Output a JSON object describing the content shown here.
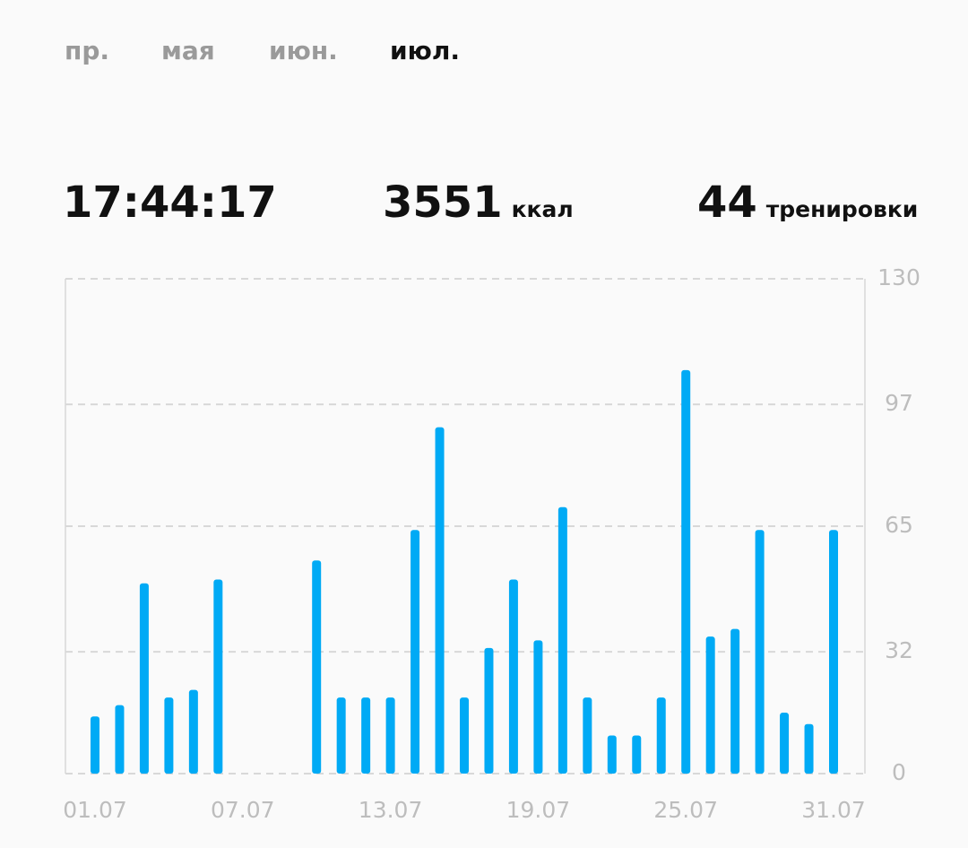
{
  "tabs": [
    "пр.",
    "мая",
    "июн.",
    "июл."
  ],
  "stats": {
    "duration": "17:44:17",
    "calories": "3551",
    "calories_unit": "ккал",
    "workouts": "44",
    "workouts_unit": "тренировки"
  },
  "chart_data": {
    "type": "bar",
    "categories": [
      "01.07",
      null,
      null,
      null,
      null,
      null,
      "07.07",
      null,
      null,
      null,
      null,
      null,
      "13.07",
      null,
      null,
      null,
      null,
      null,
      "19.07",
      null,
      null,
      null,
      null,
      null,
      "25.07",
      null,
      null,
      null,
      null,
      null,
      "31.07"
    ],
    "values": [
      15,
      18,
      50,
      20,
      22,
      51,
      0,
      0,
      0,
      56,
      20,
      20,
      20,
      64,
      91,
      20,
      33,
      51,
      35,
      70,
      20,
      10,
      10,
      20,
      106,
      36,
      38,
      64,
      16,
      13,
      64
    ],
    "color": "#00aaf5",
    "ylim": [
      0,
      130
    ],
    "yticks": [
      0,
      32,
      65,
      97,
      130
    ],
    "grid": true
  }
}
